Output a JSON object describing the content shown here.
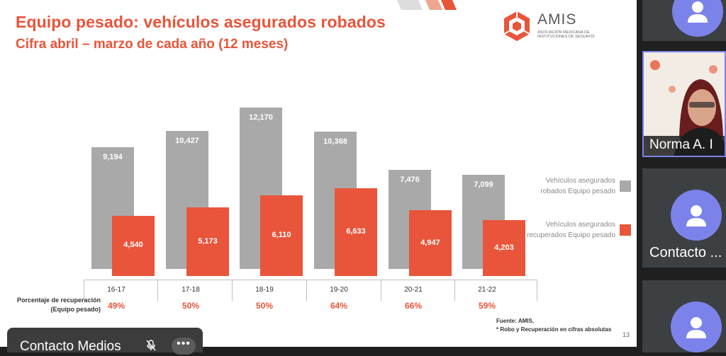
{
  "slide": {
    "title": "Equipo pesado: vehículos asegurados robados",
    "subtitle": "Cifra abril – marzo de cada año (12 meses)",
    "logo": {
      "name": "AMIS",
      "tagline": "Asociación Mexicana de Instituciones de Seguros"
    },
    "row_label": "Porcentaje de recuperación (Equipo pesado)",
    "legend": [
      {
        "label": "Vehículos asegurados robados Equipo pesado",
        "color": "#a9a9a9"
      },
      {
        "label": "Vehículos asegurados recuperados Equipo pesado",
        "color": "#e8553a"
      }
    ],
    "source_line1": "Fuente: AMIS,",
    "source_line2": "* Robo y Recuperación en cifras absolutas",
    "page_number": "13"
  },
  "chart_data": {
    "type": "bar",
    "categories": [
      "16-17",
      "17-18",
      "18-19",
      "19-20",
      "20-21",
      "21-22"
    ],
    "series": [
      {
        "name": "Vehículos asegurados robados Equipo pesado",
        "values": [
          9194,
          10427,
          12170,
          10368,
          7476,
          7099
        ],
        "labels": [
          "9,194",
          "10,427",
          "12,170",
          "10,368",
          "7,476",
          "7,099"
        ],
        "color": "#a9a9a9"
      },
      {
        "name": "Vehículos asegurados recuperados Equipo pesado",
        "values": [
          4540,
          5173,
          6110,
          6633,
          4947,
          4203
        ],
        "labels": [
          "4,540",
          "5,173",
          "6,110",
          "6,633",
          "4,947",
          "4,203"
        ],
        "color": "#e8553a"
      }
    ],
    "recovery_pct": [
      "49%",
      "50%",
      "50%",
      "64%",
      "66%",
      "59%"
    ],
    "ylim": [
      0,
      12170
    ],
    "legend_position": "right"
  },
  "meeting": {
    "presenter_bar_name": "Contacto Medios",
    "more_label": "•••",
    "participants": [
      {
        "name": "",
        "type": "avatar"
      },
      {
        "name": "Norma A. I",
        "type": "video"
      },
      {
        "name": "Contacto ...",
        "type": "avatar"
      },
      {
        "name": "",
        "type": "avatar"
      }
    ]
  }
}
